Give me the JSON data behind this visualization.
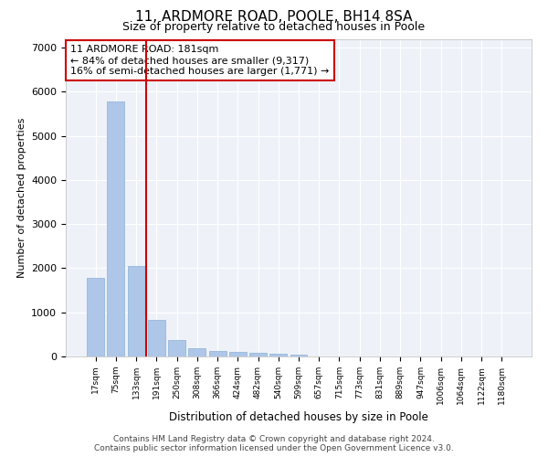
{
  "title1": "11, ARDMORE ROAD, POOLE, BH14 8SA",
  "title2": "Size of property relative to detached houses in Poole",
  "xlabel": "Distribution of detached houses by size in Poole",
  "ylabel": "Number of detached properties",
  "categories": [
    "17sqm",
    "75sqm",
    "133sqm",
    "191sqm",
    "250sqm",
    "308sqm",
    "366sqm",
    "424sqm",
    "482sqm",
    "540sqm",
    "599sqm",
    "657sqm",
    "715sqm",
    "773sqm",
    "831sqm",
    "889sqm",
    "947sqm",
    "1006sqm",
    "1064sqm",
    "1122sqm",
    "1180sqm"
  ],
  "values": [
    1780,
    5780,
    2060,
    820,
    370,
    195,
    115,
    100,
    90,
    55,
    45,
    0,
    0,
    0,
    0,
    0,
    0,
    0,
    0,
    0,
    0
  ],
  "bar_color": "#aec6e8",
  "vline_x": 2.5,
  "vline_color": "#cc0000",
  "annotation_box_text": "11 ARDMORE ROAD: 181sqm\n← 84% of detached houses are smaller (9,317)\n16% of semi-detached houses are larger (1,771) →",
  "ylim": [
    0,
    7200
  ],
  "yticks": [
    0,
    1000,
    2000,
    3000,
    4000,
    5000,
    6000,
    7000
  ],
  "background_color": "#eef2f8",
  "grid_color": "#ffffff",
  "footer_line1": "Contains HM Land Registry data © Crown copyright and database right 2024.",
  "footer_line2": "Contains public sector information licensed under the Open Government Licence v3.0.",
  "title_fontsize": 11,
  "subtitle_fontsize": 9,
  "box_edge_color": "#cc0000",
  "annotation_fontsize": 8
}
